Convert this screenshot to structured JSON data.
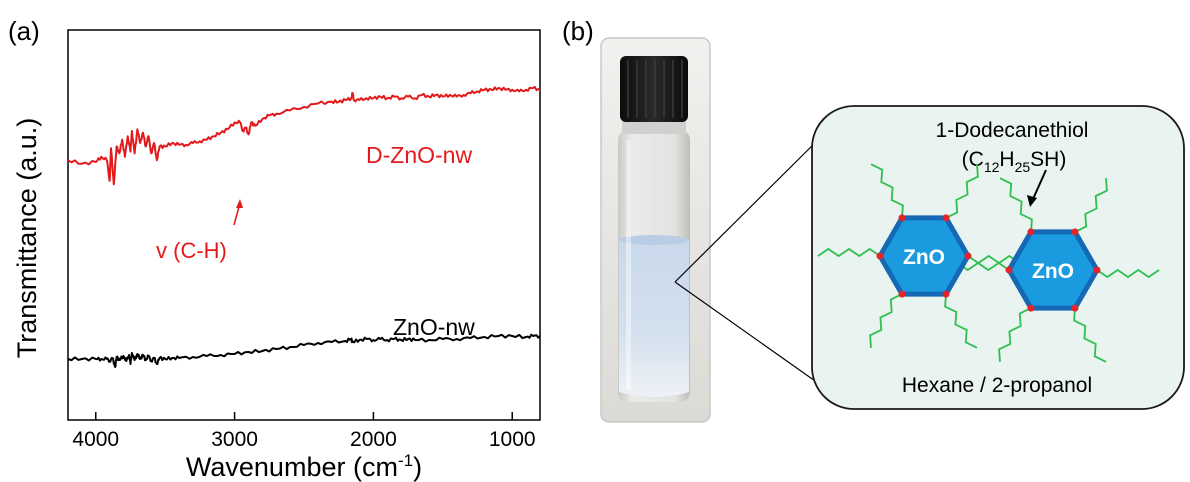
{
  "panel_a": {
    "label": "(a)",
    "ylabel": "Transmittance (a.u.)",
    "xlabel_main": "Wavenumber (cm",
    "xlabel_sup": "-1",
    "xlabel_close": ")",
    "ticks": [
      "4000",
      "3000",
      "2000",
      "1000"
    ],
    "annotation_vch": "v (C-H)"
  },
  "panel_b": {
    "label": "(b)",
    "ligand_name": "1-Dodecanethiol",
    "formula_open": "(C",
    "formula_sub1": "12",
    "formula_h": "H",
    "formula_sub2": "25",
    "formula_end": "SH)",
    "particle_label": "ZnO",
    "solvent": "Hexane / 2-propanol"
  },
  "colors": {
    "red_series": "#e31a1c",
    "black_series": "#000000",
    "hexagon_fill": "#1a9be0",
    "hexagon_stroke": "#1468b4",
    "ligand_green": "#2fbf4f",
    "callout_bg": "#e9f3ef"
  },
  "chart_data": {
    "type": "line",
    "xlabel": "Wavenumber (cm-1)",
    "ylabel": "Transmittance (a.u.)",
    "xlim": [
      4200,
      800
    ],
    "x_reversed": true,
    "y_units": "arbitrary",
    "ylim": [
      0,
      100
    ],
    "grid": false,
    "legend": "inline labels",
    "xticks": [
      4000,
      3000,
      2000,
      1000
    ],
    "series": [
      {
        "name": "D-ZnO-nw",
        "color": "#e31a1c",
        "label_position": "right of curve",
        "points": [
          [
            4200,
            58
          ],
          [
            4100,
            56
          ],
          [
            4000,
            57
          ],
          [
            3960,
            60
          ],
          [
            3920,
            58
          ],
          [
            3900,
            46
          ],
          [
            3890,
            65
          ],
          [
            3870,
            44
          ],
          [
            3850,
            66
          ],
          [
            3830,
            62
          ],
          [
            3810,
            70
          ],
          [
            3790,
            60
          ],
          [
            3770,
            72
          ],
          [
            3750,
            63
          ],
          [
            3740,
            75
          ],
          [
            3720,
            62
          ],
          [
            3700,
            76
          ],
          [
            3680,
            68
          ],
          [
            3660,
            74
          ],
          [
            3640,
            66
          ],
          [
            3620,
            72
          ],
          [
            3600,
            62
          ],
          [
            3580,
            68
          ],
          [
            3560,
            58
          ],
          [
            3540,
            66
          ],
          [
            3500,
            66
          ],
          [
            3450,
            68
          ],
          [
            3400,
            67
          ],
          [
            3350,
            67
          ],
          [
            3300,
            68
          ],
          [
            3250,
            69
          ],
          [
            3200,
            70
          ],
          [
            3150,
            72
          ],
          [
            3100,
            74
          ],
          [
            3050,
            76
          ],
          [
            3000,
            80
          ],
          [
            2960,
            80
          ],
          [
            2940,
            75
          ],
          [
            2920,
            77
          ],
          [
            2900,
            73
          ],
          [
            2880,
            80
          ],
          [
            2850,
            78
          ],
          [
            2800,
            82
          ],
          [
            2750,
            84
          ],
          [
            2700,
            85
          ],
          [
            2600,
            87
          ],
          [
            2500,
            89
          ],
          [
            2400,
            91
          ],
          [
            2300,
            92
          ],
          [
            2250,
            92
          ],
          [
            2200,
            93
          ],
          [
            2160,
            94
          ],
          [
            2150,
            97
          ],
          [
            2140,
            93
          ],
          [
            2100,
            93
          ],
          [
            2050,
            94
          ],
          [
            2000,
            94
          ],
          [
            1950,
            95
          ],
          [
            1900,
            94
          ],
          [
            1850,
            95
          ],
          [
            1800,
            94
          ],
          [
            1750,
            95
          ],
          [
            1700,
            94
          ],
          [
            1650,
            96
          ],
          [
            1600,
            95
          ],
          [
            1550,
            96
          ],
          [
            1500,
            95
          ],
          [
            1450,
            96
          ],
          [
            1400,
            95
          ],
          [
            1350,
            96
          ],
          [
            1300,
            97
          ],
          [
            1250,
            98
          ],
          [
            1200,
            99
          ],
          [
            1150,
            99
          ],
          [
            1100,
            100
          ],
          [
            1050,
            99
          ],
          [
            1000,
            99
          ],
          [
            950,
            98
          ],
          [
            900,
            99
          ],
          [
            850,
            100
          ],
          [
            800,
            99
          ]
        ]
      },
      {
        "name": "ZnO-nw",
        "color": "#000000",
        "label_position": "right of curve",
        "points": [
          [
            4200,
            11
          ],
          [
            4100,
            11
          ],
          [
            4000,
            11
          ],
          [
            3960,
            11
          ],
          [
            3920,
            11
          ],
          [
            3900,
            9
          ],
          [
            3880,
            12
          ],
          [
            3860,
            3
          ],
          [
            3850,
            13
          ],
          [
            3830,
            10
          ],
          [
            3800,
            14
          ],
          [
            3780,
            9
          ],
          [
            3760,
            15
          ],
          [
            3750,
            6
          ],
          [
            3740,
            17
          ],
          [
            3720,
            10
          ],
          [
            3700,
            16
          ],
          [
            3680,
            11
          ],
          [
            3660,
            15
          ],
          [
            3640,
            10
          ],
          [
            3620,
            14
          ],
          [
            3600,
            9
          ],
          [
            3580,
            12
          ],
          [
            3560,
            6
          ],
          [
            3540,
            12
          ],
          [
            3500,
            11
          ],
          [
            3450,
            12
          ],
          [
            3400,
            12
          ],
          [
            3300,
            13
          ],
          [
            3200,
            14
          ],
          [
            3100,
            15
          ],
          [
            3000,
            16
          ],
          [
            2900,
            18
          ],
          [
            2800,
            19
          ],
          [
            2700,
            21
          ],
          [
            2600,
            23
          ],
          [
            2500,
            25
          ],
          [
            2400,
            27
          ],
          [
            2300,
            28
          ],
          [
            2200,
            29
          ],
          [
            2160,
            31
          ],
          [
            2150,
            28
          ],
          [
            2100,
            30
          ],
          [
            2050,
            31
          ],
          [
            2000,
            30
          ],
          [
            1950,
            31
          ],
          [
            1900,
            30
          ],
          [
            1850,
            31
          ],
          [
            1800,
            30
          ],
          [
            1750,
            31
          ],
          [
            1700,
            30
          ],
          [
            1600,
            30
          ],
          [
            1500,
            31
          ],
          [
            1400,
            31
          ],
          [
            1300,
            32
          ],
          [
            1200,
            33
          ],
          [
            1100,
            34
          ],
          [
            1000,
            34
          ],
          [
            900,
            33
          ],
          [
            850,
            34
          ],
          [
            800,
            34
          ]
        ]
      }
    ],
    "annotations": [
      {
        "text": "v (C-H)",
        "x": 2960,
        "color": "#e31a1c"
      }
    ]
  }
}
